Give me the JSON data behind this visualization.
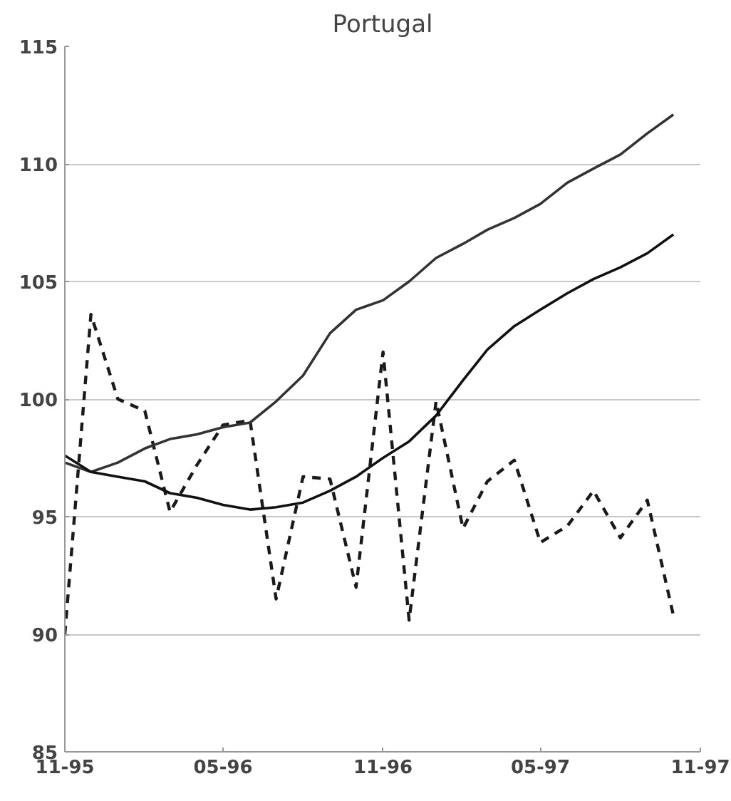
{
  "chart_data": {
    "type": "line",
    "title": "Portugal",
    "x": [
      "1995-11",
      "1995-12",
      "1996-01",
      "1996-02",
      "1996-03",
      "1996-04",
      "1996-05",
      "1996-06",
      "1996-07",
      "1996-08",
      "1996-09",
      "1996-10",
      "1996-11",
      "1996-12",
      "1997-01",
      "1997-02",
      "1997-03",
      "1997-04",
      "1997-05",
      "1997-06",
      "1997-07",
      "1997-08",
      "1997-09",
      "1997-10"
    ],
    "series": [
      {
        "color": "#1a1a1a",
        "line_style": "dashed",
        "values": [
          90.0,
          103.6,
          100.0,
          99.5,
          95.2,
          97.2,
          98.9,
          99.1,
          91.5,
          96.7,
          96.6,
          92.0,
          102.0,
          90.6,
          99.9,
          94.5,
          96.5,
          97.4,
          93.9,
          94.6,
          96.1,
          94.1,
          95.7,
          90.8
        ]
      },
      {
        "color": "#333333",
        "line_style": "solid",
        "values": [
          97.3,
          96.9,
          97.3,
          97.9,
          98.3,
          98.5,
          98.8,
          99.0,
          99.9,
          101.0,
          102.8,
          103.8,
          104.2,
          105.0,
          106.0,
          106.6,
          107.2,
          107.7,
          108.3,
          109.2,
          109.8,
          110.4,
          111.3,
          112.1
        ]
      },
      {
        "color": "#111111",
        "line_style": "solid",
        "values": [
          97.6,
          96.9,
          96.7,
          96.5,
          96.0,
          95.8,
          95.5,
          95.3,
          95.4,
          95.6,
          96.1,
          96.7,
          97.5,
          98.2,
          99.3,
          100.8,
          102.1,
          103.1,
          103.8,
          104.5,
          105.1,
          105.6,
          106.2,
          107.0
        ]
      }
    ],
    "xlim": [
      "1995-11",
      "1997-11"
    ],
    "xticks": [
      {
        "value": "1995-11",
        "label": "11-95"
      },
      {
        "value": "1996-05",
        "label": "05-96"
      },
      {
        "value": "1996-11",
        "label": "11-96"
      },
      {
        "value": "1997-05",
        "label": "05-97"
      },
      {
        "value": "1997-11",
        "label": "11-97"
      }
    ],
    "ylim": [
      85,
      115
    ],
    "yticks": [
      85,
      90,
      95,
      100,
      105,
      110,
      115
    ],
    "grid": "y",
    "marker": "none"
  }
}
